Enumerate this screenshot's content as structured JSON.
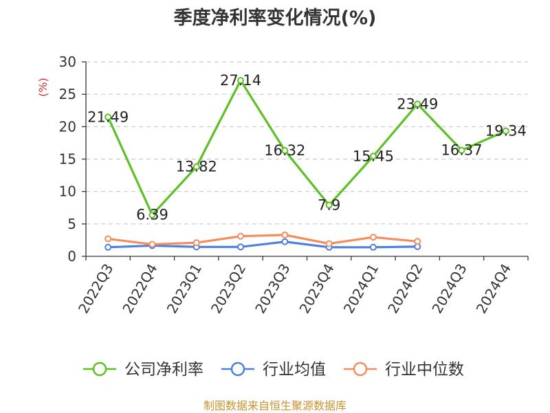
{
  "chart_data": {
    "type": "line",
    "title": "季度净利率变化情况(%)",
    "ylabel": "(%)",
    "categories": [
      "2022Q3",
      "2022Q4",
      "2023Q1",
      "2023Q2",
      "2023Q3",
      "2023Q4",
      "2024Q1",
      "2024Q2",
      "2024Q3",
      "2024Q4"
    ],
    "ylim": [
      0,
      30
    ],
    "yticks": [
      0,
      5,
      10,
      15,
      20,
      25,
      30
    ],
    "grid": true,
    "legend_position": "bottom",
    "series": [
      {
        "name": "公司净利率",
        "color": "#5cc024",
        "values": [
          21.49,
          6.39,
          13.82,
          27.14,
          16.32,
          7.9,
          15.45,
          23.49,
          16.37,
          19.34
        ],
        "labels": [
          "21.49",
          "6.39",
          "13.82",
          "27.14",
          "16.32",
          "7.9",
          "15.45",
          "23.49",
          "16.37",
          "19.34"
        ]
      },
      {
        "name": "行业均值",
        "color": "#4f7fdc",
        "values": [
          1.4,
          1.65,
          1.45,
          1.45,
          2.25,
          1.4,
          1.4,
          1.5,
          null,
          null
        ]
      },
      {
        "name": "行业中位数",
        "color": "#f48c5c",
        "values": [
          2.7,
          1.85,
          2.1,
          3.1,
          3.3,
          1.95,
          2.95,
          2.3,
          null,
          null
        ]
      }
    ]
  },
  "footer": {
    "source": "制图数据来自恒生聚源数据库"
  }
}
